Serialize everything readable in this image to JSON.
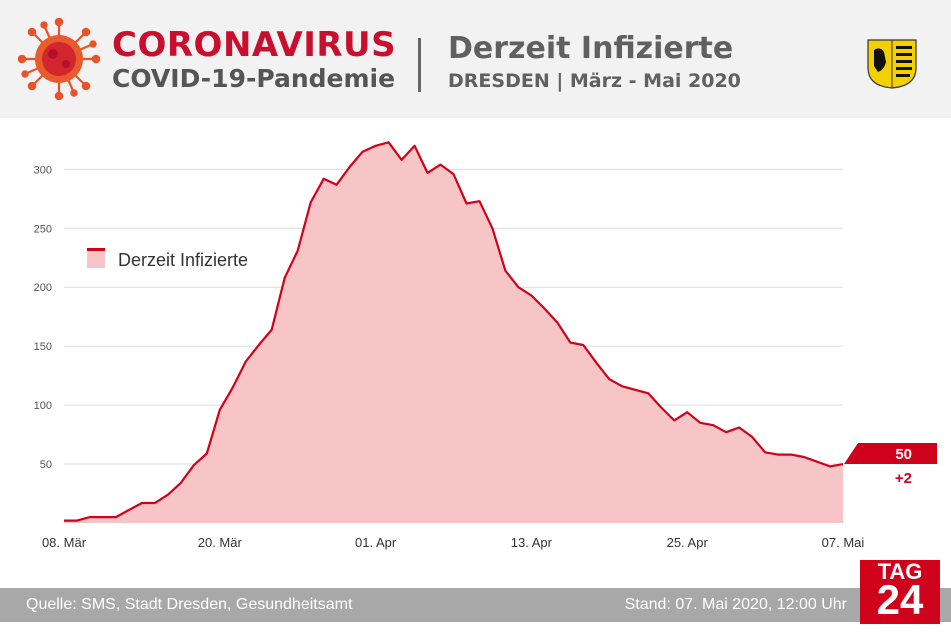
{
  "header": {
    "title": "CORONAVIRUS",
    "subtitle": "COVID-19-Pandemie",
    "chart_title": "Derzeit Infizierte",
    "chart_subtitle": "DRESDEN | März - Mai 2020"
  },
  "footer": {
    "source": "Quelle: SMS, Stadt Dresden, Gesundheitsamt",
    "timestamp": "Stand: 07. Mai 2020, 12:00 Uhr"
  },
  "brand": {
    "line1": "TAG",
    "line2": "24"
  },
  "colors": {
    "accent": "#c8102e",
    "line": "#d0021b",
    "fill": "#f7c5c5"
  },
  "chart_data": {
    "type": "area",
    "title": "Derzeit Infizierte",
    "series": [
      {
        "name": "Derzeit Infizierte",
        "values": [
          2,
          2,
          5,
          5,
          5,
          11,
          17,
          17,
          24,
          34,
          49,
          59,
          96,
          115,
          137,
          151,
          164,
          208,
          231,
          272,
          292,
          287,
          302,
          315,
          320,
          323,
          308,
          320,
          297,
          304,
          296,
          271,
          273,
          250,
          214,
          200,
          193,
          182,
          170,
          153,
          151,
          136,
          122,
          116,
          113,
          110,
          98,
          87,
          94,
          85,
          83,
          77,
          81,
          73,
          60,
          58,
          58,
          56,
          52,
          48,
          50
        ]
      }
    ],
    "x_labels": [
      "08. Mär",
      "20. Mär",
      "01. Apr",
      "13. Apr",
      "25. Apr",
      "07. Mai"
    ],
    "x_label_index": [
      0,
      12,
      24,
      36,
      48,
      60
    ],
    "ylim": [
      0,
      330
    ],
    "yticks": [
      50,
      100,
      150,
      200,
      250,
      300
    ],
    "grid": true,
    "legend": "top-left",
    "last_value": "50",
    "last_change": "+2"
  }
}
